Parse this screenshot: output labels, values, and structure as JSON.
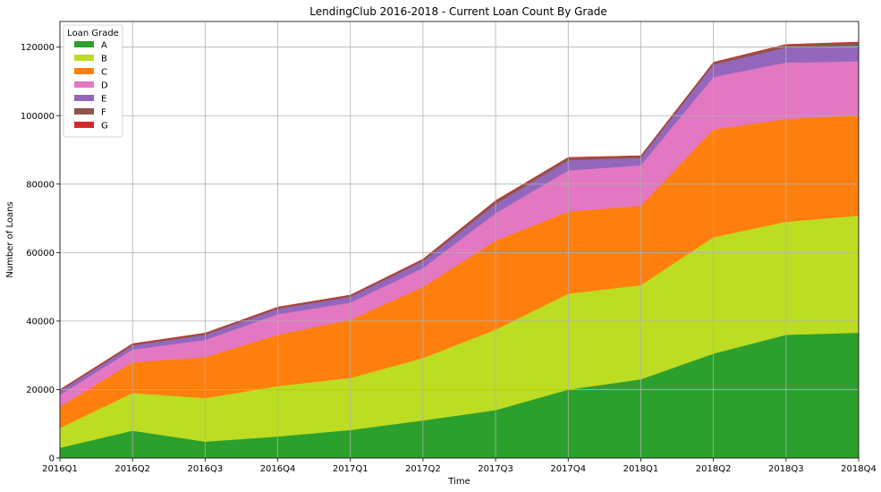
{
  "chart_data": {
    "type": "area",
    "stacked": true,
    "title": "LendingClub 2016-2018 - Current Loan Count By Grade",
    "xlabel": "Time",
    "ylabel": "Number of Loans",
    "categories": [
      "2016Q1",
      "2016Q2",
      "2016Q3",
      "2016Q4",
      "2017Q1",
      "2017Q2",
      "2017Q3",
      "2017Q4",
      "2018Q1",
      "2018Q2",
      "2018Q3",
      "2018Q4"
    ],
    "ylim": [
      0,
      127500
    ],
    "yticks": [
      0,
      20000,
      40000,
      60000,
      80000,
      100000,
      120000
    ],
    "grid": true,
    "legend_title": "Loan Grade",
    "legend_position": "top-left",
    "series": [
      {
        "name": "A",
        "color": "#2ca02c",
        "values": [
          3000,
          8000,
          4800,
          6300,
          8200,
          11000,
          14000,
          20000,
          23000,
          30500,
          36000,
          36600
        ]
      },
      {
        "name": "B",
        "color": "#bcdd22",
        "values": [
          5800,
          11000,
          12700,
          14700,
          15200,
          18200,
          23500,
          28000,
          27500,
          34000,
          33000,
          34200
        ]
      },
      {
        "name": "C",
        "color": "#ff7f0e",
        "values": [
          6200,
          9000,
          12000,
          15000,
          17000,
          20800,
          26000,
          24000,
          23200,
          31500,
          30000,
          29300
        ]
      },
      {
        "name": "D",
        "color": "#e377c2",
        "values": [
          3500,
          3700,
          5000,
          6000,
          5000,
          5500,
          8000,
          12000,
          11800,
          15300,
          16500,
          15800
        ]
      },
      {
        "name": "E",
        "color": "#9467bd",
        "values": [
          1100,
          1200,
          1500,
          1600,
          1700,
          2000,
          2700,
          3000,
          2200,
          3600,
          4400,
          4600
        ]
      },
      {
        "name": "F",
        "color": "#8c564b",
        "values": [
          300,
          400,
          400,
          400,
          400,
          500,
          800,
          700,
          500,
          600,
          800,
          900
        ]
      },
      {
        "name": "G",
        "color": "#d62728",
        "values": [
          100,
          100,
          100,
          100,
          100,
          100,
          200,
          100,
          100,
          100,
          100,
          100
        ]
      }
    ]
  }
}
